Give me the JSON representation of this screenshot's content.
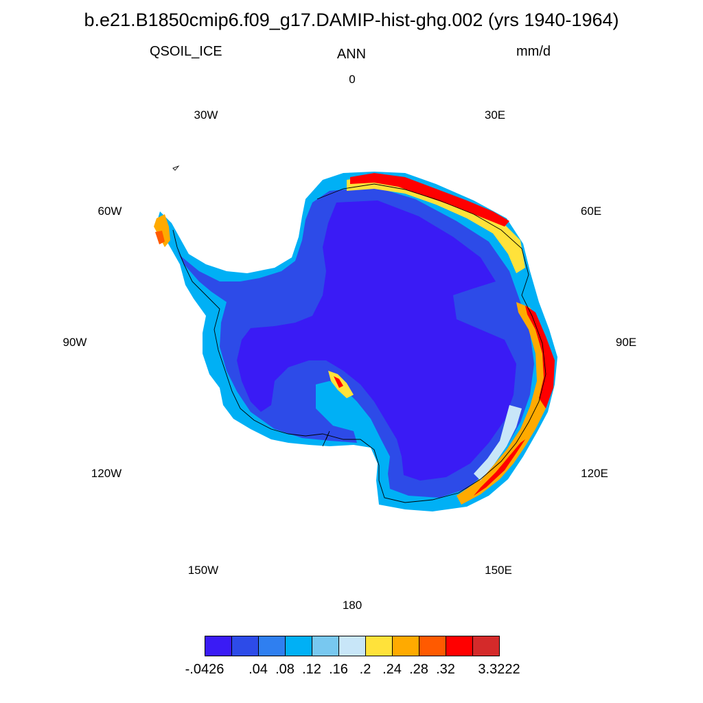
{
  "title": "b.e21.B1850cmip6.f09_g17.DAMIP-hist-ghg.002 (yrs 1940-1964)",
  "variable": "QSOIL_ICE",
  "period": "ANN",
  "units": "mm/d",
  "longitude_labels": [
    "0",
    "30E",
    "60E",
    "90E",
    "120E",
    "150E",
    "180",
    "150W",
    "120W",
    "90W",
    "60W",
    "30W"
  ],
  "colorbar": {
    "colors": [
      "#3a1bf5",
      "#2d4be8",
      "#2f7ff0",
      "#00b0f5",
      "#78c8f0",
      "#c8e6f8",
      "#ffe23a",
      "#ffaa00",
      "#ff5a00",
      "#ff0000",
      "#d42a2a"
    ],
    "labels": [
      "-.0426",
      ".04",
      ".08",
      ".12",
      ".16",
      ".2",
      ".24",
      ".28",
      ".32",
      "3.3222"
    ]
  }
}
